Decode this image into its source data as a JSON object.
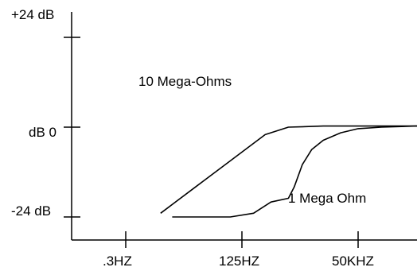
{
  "chart_data": {
    "type": "line",
    "title": "",
    "xlabel": "",
    "ylabel": "",
    "x_ticks": [
      ".3HZ",
      "125HZ",
      "50KHZ"
    ],
    "y_ticks": [
      {
        "label": "+24 dB",
        "value": 24
      },
      {
        "label": "dB 0",
        "value": 0
      },
      {
        "label": "-24 dB",
        "value": -24
      }
    ],
    "ylim": [
      -24,
      24
    ],
    "grid": false,
    "colors": {
      "axis": "#000000",
      "line": "#000000",
      "background": "#ffffff"
    },
    "annotations": [
      {
        "text": "10 Mega-Ohms"
      },
      {
        "text": "1 Mega Ohm"
      }
    ],
    "series": [
      {
        "x": [
          0.3,
          0.6,
          0.9,
          1.2,
          1.4,
          1.6,
          1.7,
          2,
          3,
          4.7
        ],
        "y": [
          -23,
          -16,
          -9,
          -2,
          0,
          0.2,
          0.3,
          0.3,
          0.3,
          0.3
        ]
      },
      {
        "x": [
          0.4,
          0.9,
          1.1,
          1.25,
          1.4,
          1.45,
          1.52,
          1.6,
          1.7,
          1.85,
          2,
          2.2,
          2.5,
          3,
          4.7
        ],
        "y": [
          -24,
          -24,
          -23,
          -20,
          -19,
          -16,
          -10,
          -6,
          -3.5,
          -1.5,
          -0.4,
          0,
          0.3,
          0.3,
          0.3
        ]
      }
    ]
  }
}
